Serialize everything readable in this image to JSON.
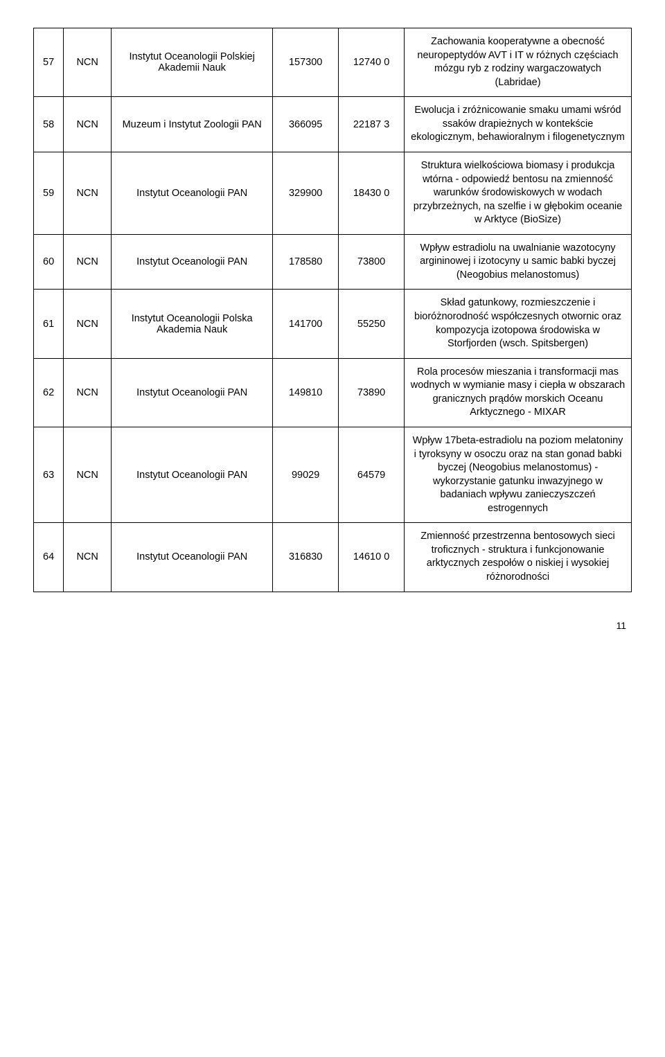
{
  "page_number": "11",
  "rows": [
    {
      "idx": "57",
      "funder": "NCN",
      "institution": "Instytut Oceanologii Polskiej Akademii Nauk",
      "amount1": "157300",
      "amount2": "12740 0",
      "description": "Zachowania kooperatywne a obecność neuropeptydów AVT i IT w różnych częściach mózgu ryb z rodziny wargaczowatych (Labridae)"
    },
    {
      "idx": "58",
      "funder": "NCN",
      "institution": "Muzeum i Instytut Zoologii PAN",
      "amount1": "366095",
      "amount2": "22187 3",
      "description": "Ewolucja i zróżnicowanie smaku umami wśród ssaków drapieżnych w kontekście ekologicznym, behawioralnym i filogenetycznym"
    },
    {
      "idx": "59",
      "funder": "NCN",
      "institution": "Instytut Oceanologii PAN",
      "amount1": "329900",
      "amount2": "18430 0",
      "description": "Struktura wielkościowa biomasy i produkcja wtórna - odpowiedź bentosu na zmienność warunków środowiskowych w wodach przybrzeżnych, na szelfie i w głębokim oceanie w Arktyce (BioSize)"
    },
    {
      "idx": "60",
      "funder": "NCN",
      "institution": "Instytut Oceanologii PAN",
      "amount1": "178580",
      "amount2": "73800",
      "description": "Wpływ estradiolu na uwalnianie wazotocyny argininowej i izotocyny u samic babki byczej (Neogobius melanostomus)"
    },
    {
      "idx": "61",
      "funder": "NCN",
      "institution": "Instytut Oceanologii Polska Akademia Nauk",
      "amount1": "141700",
      "amount2": "55250",
      "description": "Skład gatunkowy, rozmieszczenie i bioróżnorodność współczesnych otwornic oraz kompozycja izotopowa środowiska w Storfjorden (wsch. Spitsbergen)"
    },
    {
      "idx": "62",
      "funder": "NCN",
      "institution": "Instytut Oceanologii PAN",
      "amount1": "149810",
      "amount2": "73890",
      "description": "Rola procesów mieszania i transformacji mas wodnych w wymianie masy i ciepła w obszarach granicznych prądów morskich Oceanu Arktycznego - MIXAR"
    },
    {
      "idx": "63",
      "funder": "NCN",
      "institution": "Instytut Oceanologii PAN",
      "amount1": "99029",
      "amount2": "64579",
      "description": "Wpływ 17beta-estradiolu na poziom melatoniny i tyroksyny w osoczu oraz na stan gonad babki byczej (Neogobius melanostomus) - wykorzystanie gatunku inwazyjnego w badaniach wpływu zanieczyszczeń estrogennych"
    },
    {
      "idx": "64",
      "funder": "NCN",
      "institution": "Instytut Oceanologii PAN",
      "amount1": "316830",
      "amount2": "14610 0",
      "description": "Zmienność przestrzenna bentosowych sieci troficznych - struktura i funkcjonowanie arktycznych zespołów o niskiej i wysokiej różnorodności"
    }
  ]
}
